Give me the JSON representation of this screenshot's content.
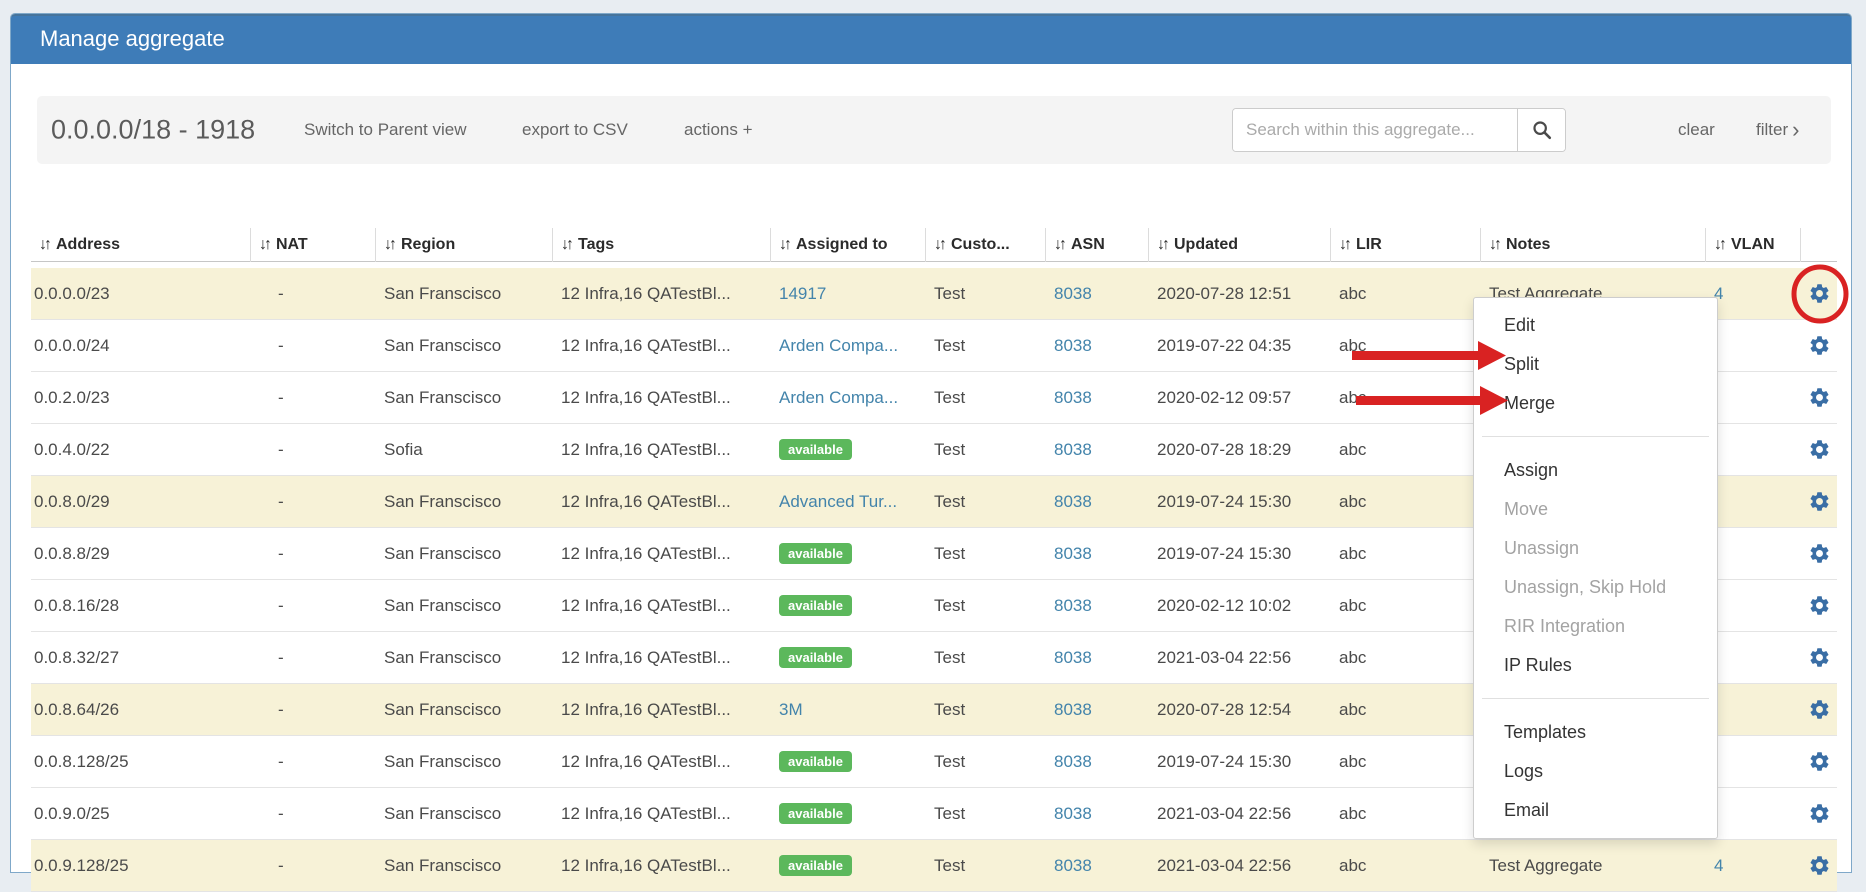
{
  "header": {
    "title": "Manage aggregate"
  },
  "toolbar": {
    "aggregate_label": "0.0.0.0/18 - 1918",
    "links": [
      "Switch to Parent view",
      "export to CSV",
      "actions +"
    ],
    "search": {
      "placeholder": "Search within this aggregate...",
      "icon": "magnifier"
    },
    "clear_label": "clear",
    "filter_label": "filter",
    "filter_chevron": "›"
  },
  "table": {
    "sort_icon": "↓↑",
    "row_actions_icon": "gear",
    "columns": [
      "Address",
      "NAT",
      "Region",
      "Tags",
      "Assigned to",
      "Custo...",
      "ASN",
      "Updated",
      "LIR",
      "Notes",
      "VLAN"
    ],
    "rows": [
      {
        "address": "0.0.0.0/23",
        "nat": "-",
        "region": "San Franscisco",
        "tags": "12 Infra,16 QATestBl...",
        "assigned": {
          "type": "link",
          "text": "14917"
        },
        "customer": "Test",
        "asn": "8038",
        "updated": "2020-07-28 12:51",
        "lir": "abc",
        "notes": "Test Aggregate",
        "vlan": "4",
        "highlighted": true
      },
      {
        "address": "0.0.0.0/24",
        "nat": "-",
        "region": "San Franscisco",
        "tags": "12 Infra,16 QATestBl...",
        "assigned": {
          "type": "link",
          "text": "Arden Compa..."
        },
        "customer": "Test",
        "asn": "8038",
        "updated": "2019-07-22 04:35",
        "lir": "abc",
        "notes": "",
        "vlan": "",
        "highlighted": false
      },
      {
        "address": "0.0.2.0/23",
        "nat": "-",
        "region": "San Franscisco",
        "tags": "12 Infra,16 QATestBl...",
        "assigned": {
          "type": "link",
          "text": "Arden Compa..."
        },
        "customer": "Test",
        "asn": "8038",
        "updated": "2020-02-12 09:57",
        "lir": "abc",
        "notes": "",
        "vlan": "",
        "highlighted": false
      },
      {
        "address": "0.0.4.0/22",
        "nat": "-",
        "region": "Sofia",
        "tags": "12 Infra,16 QATestBl...",
        "assigned": {
          "type": "badge",
          "text": "available"
        },
        "customer": "Test",
        "asn": "8038",
        "updated": "2020-07-28 18:29",
        "lir": "abc",
        "notes": "",
        "vlan": "",
        "highlighted": false
      },
      {
        "address": "0.0.8.0/29",
        "nat": "-",
        "region": "San Franscisco",
        "tags": "12 Infra,16 QATestBl...",
        "assigned": {
          "type": "link",
          "text": "Advanced Tur..."
        },
        "customer": "Test",
        "asn": "8038",
        "updated": "2019-07-24 15:30",
        "lir": "abc",
        "notes": "",
        "vlan": "",
        "highlighted": true
      },
      {
        "address": "0.0.8.8/29",
        "nat": "-",
        "region": "San Franscisco",
        "tags": "12 Infra,16 QATestBl...",
        "assigned": {
          "type": "badge",
          "text": "available"
        },
        "customer": "Test",
        "asn": "8038",
        "updated": "2019-07-24 15:30",
        "lir": "abc",
        "notes": "",
        "vlan": "",
        "highlighted": false
      },
      {
        "address": "0.0.8.16/28",
        "nat": "-",
        "region": "San Franscisco",
        "tags": "12 Infra,16 QATestBl...",
        "assigned": {
          "type": "badge",
          "text": "available"
        },
        "customer": "Test",
        "asn": "8038",
        "updated": "2020-02-12 10:02",
        "lir": "abc",
        "notes": "",
        "vlan": "",
        "highlighted": false
      },
      {
        "address": "0.0.8.32/27",
        "nat": "-",
        "region": "San Franscisco",
        "tags": "12 Infra,16 QATestBl...",
        "assigned": {
          "type": "badge",
          "text": "available"
        },
        "customer": "Test",
        "asn": "8038",
        "updated": "2021-03-04 22:56",
        "lir": "abc",
        "notes": "",
        "vlan": "",
        "highlighted": false
      },
      {
        "address": "0.0.8.64/26",
        "nat": "-",
        "region": "San Franscisco",
        "tags": "12 Infra,16 QATestBl...",
        "assigned": {
          "type": "link",
          "text": "3M"
        },
        "customer": "Test",
        "asn": "8038",
        "updated": "2020-07-28 12:54",
        "lir": "abc",
        "notes": "",
        "vlan": "",
        "highlighted": true
      },
      {
        "address": "0.0.8.128/25",
        "nat": "-",
        "region": "San Franscisco",
        "tags": "12 Infra,16 QATestBl...",
        "assigned": {
          "type": "badge",
          "text": "available"
        },
        "customer": "Test",
        "asn": "8038",
        "updated": "2019-07-24 15:30",
        "lir": "abc",
        "notes": "",
        "vlan": "",
        "highlighted": false
      },
      {
        "address": "0.0.9.0/25",
        "nat": "-",
        "region": "San Franscisco",
        "tags": "12 Infra,16 QATestBl...",
        "assigned": {
          "type": "badge",
          "text": "available"
        },
        "customer": "Test",
        "asn": "8038",
        "updated": "2021-03-04 22:56",
        "lir": "abc",
        "notes": "",
        "vlan": "",
        "highlighted": false
      },
      {
        "address": "0.0.9.128/25",
        "nat": "-",
        "region": "San Franscisco",
        "tags": "12 Infra,16 QATestBl...",
        "assigned": {
          "type": "badge",
          "text": "available"
        },
        "customer": "Test",
        "asn": "8038",
        "updated": "2021-03-04 22:56",
        "lir": "abc",
        "notes": "Test Aggregate",
        "vlan": "4",
        "highlighted": true
      }
    ]
  },
  "context_menu": {
    "items": [
      {
        "label": "Edit",
        "enabled": true
      },
      {
        "label": "Split",
        "enabled": true
      },
      {
        "label": "Merge",
        "enabled": true
      },
      {
        "divider": true
      },
      {
        "label": "Assign",
        "enabled": true
      },
      {
        "label": "Move",
        "enabled": false
      },
      {
        "label": "Unassign",
        "enabled": false
      },
      {
        "label": "Unassign, Skip Hold",
        "enabled": false
      },
      {
        "label": "RIR Integration",
        "enabled": false
      },
      {
        "label": "IP Rules",
        "enabled": true
      },
      {
        "divider": true
      },
      {
        "label": "Templates",
        "enabled": true
      },
      {
        "label": "Logs",
        "enabled": true
      },
      {
        "label": "Email",
        "enabled": true
      }
    ]
  },
  "annotations": {
    "circle_target": "first-row-gear-icon",
    "arrow_targets": [
      "Split",
      "Merge"
    ],
    "color": "#d92222"
  },
  "colors": {
    "header_blue": "#3e7cb8",
    "link_blue": "#4384ab",
    "badge_green": "#5cb85c",
    "gear_blue": "#3a6ea5",
    "highlight_cream": "#f7f2d7",
    "annotation_red": "#d92222"
  }
}
